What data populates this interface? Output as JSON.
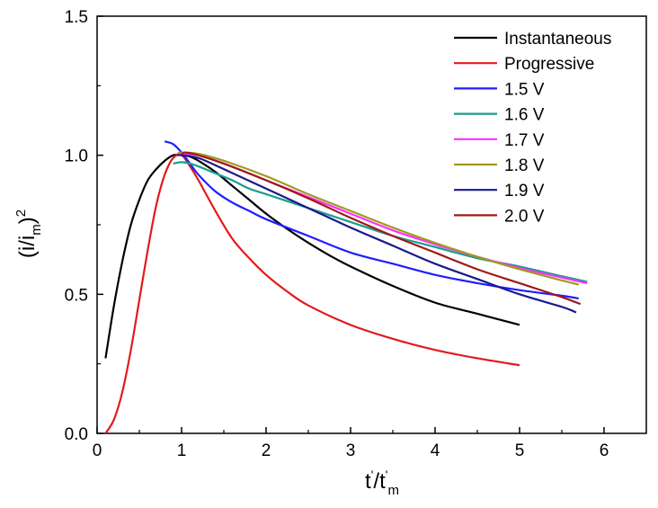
{
  "chart_data": {
    "type": "line",
    "title": "",
    "xlabel": "t'/t'm",
    "ylabel": "(i/im)^2",
    "xlabel_parts": {
      "main": "t",
      "prime1": "'",
      "slash": "/t",
      "prime2": "'",
      "sub": "m"
    },
    "ylabel_parts": {
      "open": "(i/i",
      "sub": "m",
      "close": ")",
      "sup": "2"
    },
    "xlim": [
      0,
      6.5
    ],
    "ylim": [
      0,
      1.5
    ],
    "xticks": [
      0,
      1,
      2,
      3,
      4,
      5,
      6
    ],
    "xtick_labels": [
      "0",
      "1",
      "2",
      "3",
      "4",
      "5",
      "6"
    ],
    "yticks": [
      0.0,
      0.5,
      1.0,
      1.5
    ],
    "ytick_labels": [
      "0.0",
      "0.5",
      "1.0",
      "1.5"
    ],
    "grid": false,
    "legend_position": "top-right",
    "series": [
      {
        "name": "Instantaneous",
        "color": "#000000",
        "x": [
          0.1,
          0.2,
          0.3,
          0.4,
          0.5,
          0.6,
          0.7,
          0.8,
          0.9,
          1.0,
          1.1,
          1.2,
          1.4,
          1.6,
          1.8,
          2.0,
          2.25,
          2.5,
          2.75,
          3.0,
          3.5,
          4.0,
          4.5,
          5.0
        ],
        "y": [
          0.27,
          0.46,
          0.62,
          0.75,
          0.84,
          0.91,
          0.95,
          0.98,
          1.0,
          1.0,
          0.995,
          0.98,
          0.94,
          0.89,
          0.84,
          0.79,
          0.735,
          0.685,
          0.64,
          0.6,
          0.53,
          0.47,
          0.43,
          0.39
        ]
      },
      {
        "name": "Progressive",
        "color": "#e31a1c",
        "x": [
          0.1,
          0.2,
          0.3,
          0.4,
          0.5,
          0.6,
          0.7,
          0.8,
          0.9,
          1.0,
          1.1,
          1.2,
          1.4,
          1.6,
          1.8,
          2.0,
          2.25,
          2.5,
          3.0,
          3.5,
          4.0,
          4.5,
          5.0
        ],
        "y": [
          0.0,
          0.05,
          0.15,
          0.3,
          0.48,
          0.66,
          0.82,
          0.93,
          0.99,
          1.0,
          0.96,
          0.91,
          0.8,
          0.7,
          0.63,
          0.57,
          0.51,
          0.46,
          0.39,
          0.34,
          0.3,
          0.27,
          0.245
        ]
      },
      {
        "name": "1.5 V",
        "color": "#1f1fff",
        "x": [
          0.8,
          0.9,
          1.0,
          1.1,
          1.2,
          1.4,
          1.6,
          1.8,
          2.0,
          2.5,
          3.0,
          3.5,
          4.0,
          4.5,
          5.0,
          5.5,
          5.7
        ],
        "y": [
          1.05,
          1.04,
          1.01,
          0.97,
          0.93,
          0.87,
          0.83,
          0.8,
          0.77,
          0.71,
          0.65,
          0.61,
          0.57,
          0.54,
          0.515,
          0.495,
          0.485
        ]
      },
      {
        "name": "1.6 V",
        "color": "#1a9e8c",
        "x": [
          0.9,
          1.0,
          1.1,
          1.2,
          1.4,
          1.6,
          1.8,
          2.0,
          2.5,
          3.0,
          3.5,
          4.0,
          4.5,
          5.0,
          5.5,
          5.8
        ],
        "y": [
          0.97,
          0.975,
          0.97,
          0.96,
          0.935,
          0.91,
          0.88,
          0.86,
          0.81,
          0.76,
          0.71,
          0.67,
          0.63,
          0.6,
          0.565,
          0.545
        ]
      },
      {
        "name": "1.7 V",
        "color": "#ff30ff",
        "x": [
          0.95,
          1.0,
          1.2,
          1.5,
          2.0,
          2.5,
          3.0,
          3.5,
          4.0,
          4.5,
          5.0,
          5.5,
          5.8
        ],
        "y": [
          1.0,
          1.005,
          1.0,
          0.97,
          0.91,
          0.85,
          0.79,
          0.73,
          0.68,
          0.635,
          0.595,
          0.56,
          0.54
        ]
      },
      {
        "name": "1.8 V",
        "color": "#a09a1f",
        "x": [
          0.95,
          1.0,
          1.2,
          1.5,
          2.0,
          2.5,
          3.0,
          3.5,
          4.0,
          4.5,
          5.0,
          5.5,
          5.7
        ],
        "y": [
          1.005,
          1.01,
          1.005,
          0.98,
          0.925,
          0.86,
          0.8,
          0.74,
          0.685,
          0.635,
          0.59,
          0.55,
          0.535
        ]
      },
      {
        "name": "1.9 V",
        "color": "#1a1a8a",
        "x": [
          0.95,
          1.0,
          1.2,
          1.5,
          2.0,
          2.5,
          3.0,
          3.5,
          4.0,
          4.5,
          5.0,
          5.5,
          5.67
        ],
        "y": [
          1.0,
          1.0,
          0.99,
          0.95,
          0.88,
          0.81,
          0.74,
          0.675,
          0.61,
          0.555,
          0.5,
          0.455,
          0.435
        ]
      },
      {
        "name": "2.0 V",
        "color": "#a01818",
        "x": [
          1.0,
          1.05,
          1.2,
          1.5,
          2.0,
          2.5,
          3.0,
          3.5,
          4.0,
          4.5,
          5.0,
          5.5,
          5.72
        ],
        "y": [
          1.005,
          1.01,
          1.0,
          0.97,
          0.91,
          0.845,
          0.775,
          0.71,
          0.65,
          0.59,
          0.54,
          0.49,
          0.465
        ]
      }
    ]
  }
}
